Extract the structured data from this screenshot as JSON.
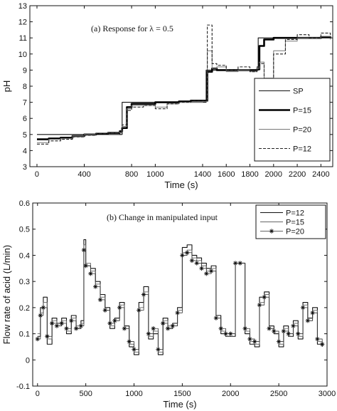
{
  "chart_data": [
    {
      "type": "line",
      "title": "(a) Response for λ = 0.5",
      "xlabel": "Time (s)",
      "ylabel": "pH",
      "xlim": [
        -60,
        2500
      ],
      "ylim": [
        3,
        13
      ],
      "xticks": [
        0,
        400,
        800,
        1000,
        1400,
        1600,
        1800,
        2000,
        2200,
        2400
      ],
      "xtick_labels": [
        "0",
        "400",
        "800",
        "1000",
        "1400",
        "1600",
        "1800",
        "2000",
        "2200",
        "2400"
      ],
      "yticks": [
        3,
        4,
        5,
        6,
        7,
        8,
        9,
        10,
        11,
        12,
        13
      ],
      "grid": false,
      "legend_position": "right",
      "series": [
        {
          "name": "SP",
          "style": "thin-solid",
          "x": [
            0,
            720,
            720,
            1430,
            1430,
            1870,
            1870,
            2480
          ],
          "y": [
            5,
            5,
            7,
            7,
            9,
            9,
            11,
            11
          ]
        },
        {
          "name": "P=15",
          "style": "thick-solid",
          "x": [
            0,
            100,
            200,
            300,
            400,
            500,
            600,
            700,
            720,
            760,
            800,
            900,
            1000,
            1100,
            1200,
            1300,
            1400,
            1440,
            1480,
            1520,
            1600,
            1700,
            1800,
            1860,
            1880,
            1920,
            2000,
            2100,
            2200,
            2300,
            2400,
            2480
          ],
          "y": [
            4.7,
            4.75,
            4.8,
            4.9,
            5.0,
            5.05,
            5.1,
            5.2,
            5.4,
            6.7,
            6.9,
            6.9,
            7.0,
            7.0,
            7.05,
            7.1,
            7.1,
            8.9,
            9.1,
            9.0,
            9.0,
            9.0,
            9.0,
            9.05,
            10.5,
            10.9,
            11.0,
            11.0,
            11.0,
            11.0,
            11.05,
            11.0
          ]
        },
        {
          "name": "P=20",
          "style": "thin-gray",
          "x": [
            0,
            100,
            200,
            300,
            400,
            500,
            600,
            700,
            720,
            760,
            800,
            900,
            1000,
            1100,
            1200,
            1300,
            1400,
            1440,
            1480,
            1520,
            1600,
            1700,
            1800,
            1860,
            1880,
            1920,
            2000,
            2100,
            2200,
            2300,
            2400,
            2480
          ],
          "y": [
            4.5,
            4.7,
            4.75,
            4.9,
            5.0,
            5.1,
            5.15,
            5.1,
            5.5,
            6.6,
            6.8,
            6.8,
            6.7,
            6.9,
            7.0,
            7.0,
            7.05,
            10.2,
            9.1,
            9.2,
            8.9,
            9.0,
            8.9,
            9.1,
            9.5,
            8.5,
            10.2,
            10.8,
            11.0,
            11.0,
            11.1,
            10.9
          ]
        },
        {
          "name": "P=12",
          "style": "dashed",
          "x": [
            0,
            100,
            200,
            300,
            400,
            500,
            600,
            700,
            720,
            760,
            800,
            900,
            1000,
            1100,
            1200,
            1300,
            1400,
            1440,
            1480,
            1520,
            1600,
            1700,
            1800,
            1860,
            1880,
            1920,
            2000,
            2100,
            2200,
            2300,
            2400,
            2480
          ],
          "y": [
            4.4,
            4.6,
            4.7,
            4.85,
            4.95,
            5.05,
            5.1,
            5.0,
            5.6,
            6.5,
            6.7,
            6.8,
            6.6,
            6.9,
            7.0,
            7.1,
            7.1,
            11.8,
            9.4,
            9.3,
            9.0,
            9.2,
            8.9,
            9.2,
            9.4,
            7.9,
            10.0,
            10.9,
            11.2,
            11.0,
            11.3,
            11.0
          ]
        }
      ]
    },
    {
      "type": "line",
      "title": "(b) Change in manipulated input",
      "xlabel": "Time (s)",
      "ylabel": "Flow rate of acid (L/min)",
      "xlim": [
        -50,
        3000
      ],
      "ylim": [
        -0.1,
        0.6
      ],
      "xticks": [
        0,
        500,
        1000,
        1500,
        2000,
        2500,
        3000
      ],
      "xtick_labels": [
        "0",
        "500",
        "1000",
        "1500",
        "2000",
        "2500",
        "3000"
      ],
      "yticks": [
        -0.1,
        0,
        0.1,
        0.2,
        0.3,
        0.4,
        0.5,
        0.6
      ],
      "ytick_labels": [
        "-0.1",
        "0",
        "0.1",
        "0.2",
        "0.3",
        "0.4",
        "0.5",
        "0.6"
      ],
      "grid": false,
      "legend_position": "top-right",
      "series": [
        {
          "name": "P=12",
          "style": "thin-solid",
          "x": [
            0,
            30,
            60,
            100,
            150,
            200,
            250,
            300,
            350,
            400,
            450,
            480,
            500,
            550,
            600,
            650,
            700,
            750,
            800,
            850,
            900,
            950,
            1000,
            1050,
            1100,
            1150,
            1200,
            1250,
            1300,
            1350,
            1400,
            1450,
            1500,
            1550,
            1600,
            1650,
            1700,
            1750,
            1800,
            1850,
            1900,
            1950,
            2000,
            2050,
            2100,
            2150,
            2200,
            2250,
            2300,
            2350,
            2400,
            2450,
            2500,
            2550,
            2600,
            2650,
            2700,
            2750,
            2800,
            2850,
            2900,
            2950
          ],
          "y": [
            0.09,
            0.2,
            0.24,
            0.06,
            0.16,
            0.14,
            0.16,
            0.1,
            0.17,
            0.12,
            0.15,
            0.46,
            0.36,
            0.35,
            0.3,
            0.25,
            0.2,
            0.12,
            0.16,
            0.22,
            0.13,
            0.05,
            0.02,
            0.22,
            0.28,
            0.08,
            0.1,
            0.02,
            0.16,
            0.12,
            0.14,
            0.2,
            0.43,
            0.44,
            0.4,
            0.39,
            0.37,
            0.35,
            0.36,
            0.17,
            0.1,
            0.09,
            0.09,
            0.37,
            0.37,
            0.1,
            0.06,
            0.05,
            0.24,
            0.26,
            0.13,
            0.1,
            0.05,
            0.13,
            0.09,
            0.15,
            0.08,
            0.22,
            0.16,
            0.2,
            0.06,
            0.05
          ]
        },
        {
          "name": "P=15",
          "style": "thin-solid-gray",
          "x": [
            0,
            30,
            60,
            100,
            150,
            200,
            250,
            300,
            350,
            400,
            450,
            480,
            500,
            550,
            600,
            650,
            700,
            750,
            800,
            850,
            900,
            950,
            1000,
            1050,
            1100,
            1150,
            1200,
            1250,
            1300,
            1350,
            1400,
            1450,
            1500,
            1550,
            1600,
            1650,
            1700,
            1750,
            1800,
            1850,
            1900,
            1950,
            2000,
            2050,
            2100,
            2150,
            2200,
            2250,
            2300,
            2350,
            2400,
            2450,
            2500,
            2550,
            2600,
            2650,
            2700,
            2750,
            2800,
            2850,
            2900,
            2950
          ],
          "y": [
            0.1,
            0.18,
            0.22,
            0.08,
            0.15,
            0.13,
            0.15,
            0.11,
            0.16,
            0.13,
            0.14,
            0.44,
            0.37,
            0.34,
            0.29,
            0.24,
            0.19,
            0.13,
            0.15,
            0.21,
            0.12,
            0.06,
            0.03,
            0.2,
            0.26,
            0.09,
            0.11,
            0.03,
            0.15,
            0.13,
            0.13,
            0.19,
            0.41,
            0.42,
            0.39,
            0.38,
            0.36,
            0.34,
            0.35,
            0.16,
            0.11,
            0.1,
            0.1,
            0.37,
            0.37,
            0.11,
            0.07,
            0.06,
            0.22,
            0.25,
            0.12,
            0.11,
            0.06,
            0.12,
            0.1,
            0.14,
            0.09,
            0.21,
            0.15,
            0.19,
            0.07,
            0.06
          ]
        },
        {
          "name": "P=20",
          "style": "star-marker",
          "x": [
            0,
            30,
            60,
            100,
            150,
            200,
            250,
            300,
            350,
            400,
            450,
            480,
            500,
            550,
            600,
            650,
            700,
            750,
            800,
            850,
            900,
            950,
            1000,
            1050,
            1100,
            1150,
            1200,
            1250,
            1300,
            1350,
            1400,
            1450,
            1500,
            1550,
            1600,
            1650,
            1700,
            1750,
            1800,
            1850,
            1900,
            1950,
            2000,
            2050,
            2100,
            2150,
            2200,
            2250,
            2300,
            2350,
            2400,
            2450,
            2500,
            2550,
            2600,
            2650,
            2700,
            2750,
            2800,
            2850,
            2900,
            2950
          ],
          "y": [
            0.08,
            0.17,
            0.2,
            0.09,
            0.14,
            0.13,
            0.14,
            0.12,
            0.15,
            0.12,
            0.13,
            0.42,
            0.36,
            0.33,
            0.28,
            0.23,
            0.19,
            0.14,
            0.15,
            0.2,
            0.12,
            0.07,
            0.04,
            0.19,
            0.25,
            0.1,
            0.12,
            0.04,
            0.14,
            0.12,
            0.13,
            0.18,
            0.4,
            0.41,
            0.38,
            0.37,
            0.35,
            0.33,
            0.34,
            0.16,
            0.12,
            0.1,
            0.1,
            0.37,
            0.37,
            0.12,
            0.08,
            0.07,
            0.21,
            0.24,
            0.12,
            0.11,
            0.07,
            0.11,
            0.1,
            0.13,
            0.1,
            0.2,
            0.15,
            0.18,
            0.08,
            0.06
          ]
        }
      ]
    }
  ]
}
